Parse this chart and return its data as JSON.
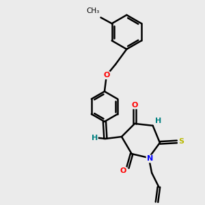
{
  "background_color": "#ebebeb",
  "line_color": "#000000",
  "bond_width": 1.8,
  "atom_colors": {
    "O": "#ff0000",
    "N": "#0000ff",
    "S": "#b8b800",
    "H": "#008080",
    "C": "#000000"
  },
  "font_size": 8,
  "figsize": [
    3.0,
    3.0
  ],
  "dpi": 100
}
